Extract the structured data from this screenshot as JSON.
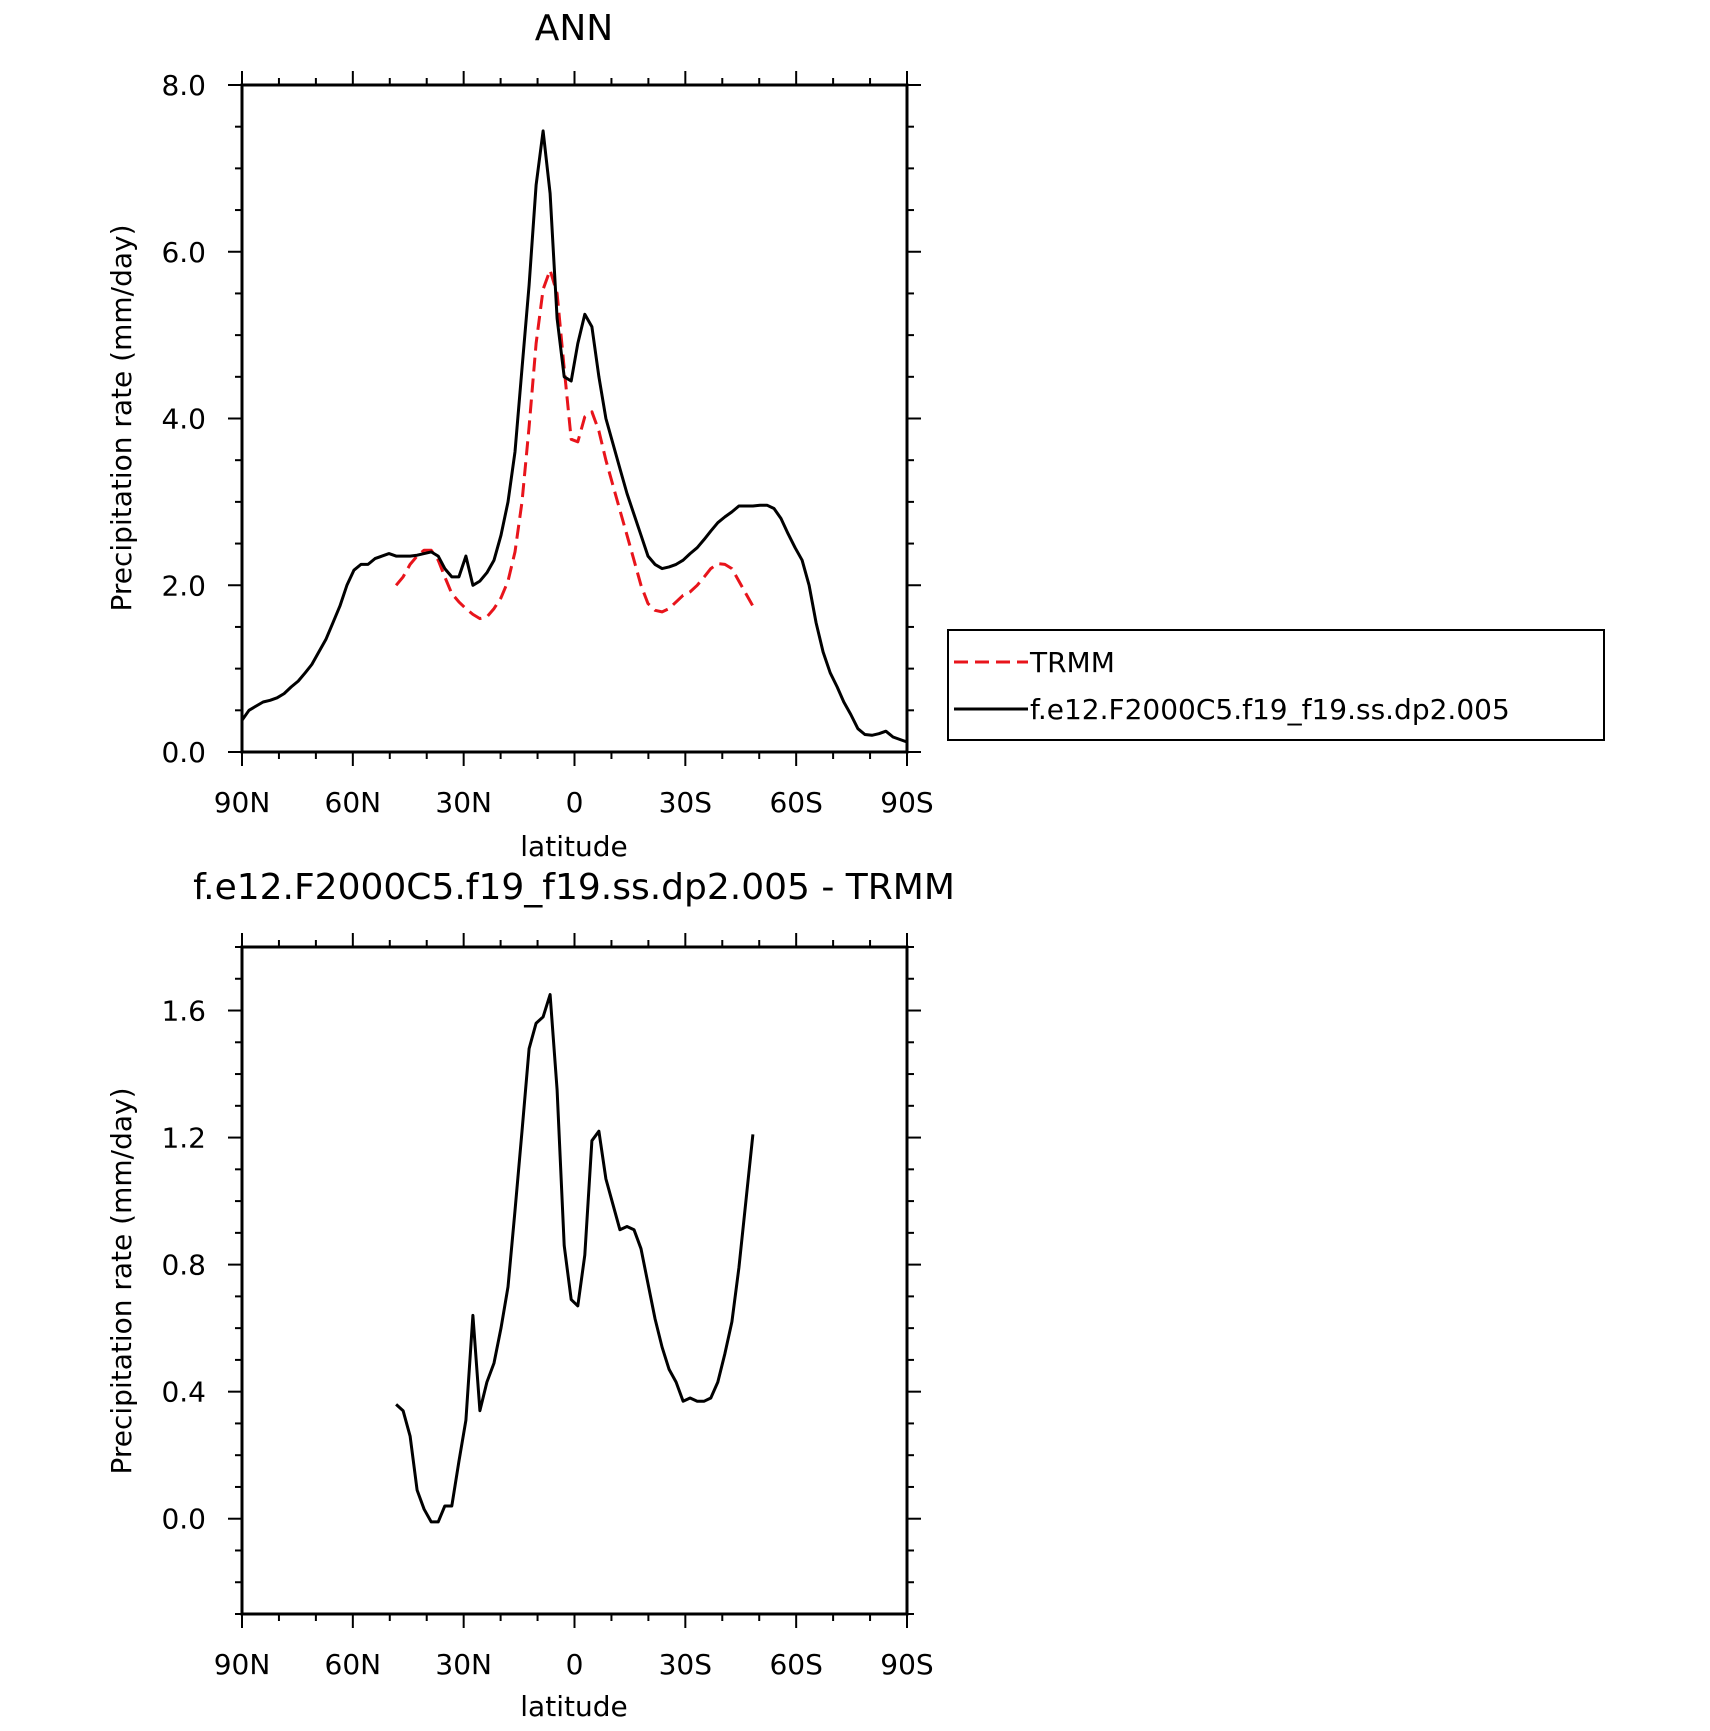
{
  "chart_data": [
    {
      "type": "line",
      "title": "ANN",
      "xlabel": "latitude",
      "ylabel": "Precipitation rate (mm/day)",
      "x_ticks": [
        "90N",
        "60N",
        "30N",
        "0",
        "30S",
        "60S",
        "90S"
      ],
      "y_ticks": [
        "0.0",
        "2.0",
        "4.0",
        "6.0",
        "8.0"
      ],
      "xlim": [
        -90,
        90
      ],
      "ylim": [
        0,
        8
      ],
      "legend_position": "outside-right",
      "series": [
        {
          "name": "TRMM",
          "color": "#e8141b",
          "dash": "dashed",
          "x": [
            -48.3,
            -46.4,
            -44.5,
            -42.6,
            -40.7,
            -38.8,
            -36.9,
            -35.1,
            -33.2,
            -31.3,
            -29.4,
            -27.5,
            -25.6,
            -23.7,
            -21.8,
            -19.9,
            -18.0,
            -16.1,
            -14.2,
            -12.3,
            -10.4,
            -8.5,
            -6.6,
            -4.7,
            -2.8,
            -0.9,
            0.9,
            2.8,
            4.7,
            6.6,
            8.5,
            10.4,
            12.3,
            14.2,
            16.1,
            18.0,
            19.9,
            21.8,
            23.7,
            25.6,
            27.5,
            29.4,
            31.3,
            33.2,
            35.1,
            36.9,
            38.8,
            40.7,
            42.6,
            44.5,
            46.4,
            48.3
          ],
          "y": [
            2.0,
            2.1,
            2.25,
            2.35,
            2.42,
            2.42,
            2.3,
            2.1,
            1.9,
            1.8,
            1.72,
            1.65,
            1.6,
            1.62,
            1.72,
            1.85,
            2.05,
            2.4,
            3.0,
            3.9,
            4.9,
            5.55,
            5.78,
            5.5,
            4.6,
            3.75,
            3.72,
            4.02,
            4.08,
            3.85,
            3.5,
            3.2,
            2.9,
            2.6,
            2.3,
            2.0,
            1.78,
            1.7,
            1.68,
            1.72,
            1.8,
            1.88,
            1.92,
            2.0,
            2.1,
            2.2,
            2.26,
            2.25,
            2.2,
            2.05,
            1.9,
            1.75
          ]
        },
        {
          "name": "f.e12.F2000C5.f19_f19.ss.dp2.005",
          "color": "#000000",
          "dash": "solid",
          "x": [
            -90,
            -88.1,
            -86.2,
            -84.3,
            -82.4,
            -80.5,
            -78.6,
            -76.7,
            -74.8,
            -72.9,
            -71.1,
            -69.2,
            -67.3,
            -65.4,
            -63.5,
            -61.6,
            -59.7,
            -57.8,
            -55.9,
            -54.0,
            -52.1,
            -50.2,
            -48.3,
            -46.4,
            -44.5,
            -42.6,
            -40.7,
            -38.8,
            -36.9,
            -35.1,
            -33.2,
            -31.3,
            -29.4,
            -27.5,
            -25.6,
            -23.7,
            -21.8,
            -19.9,
            -18.0,
            -16.1,
            -14.2,
            -12.3,
            -10.4,
            -8.5,
            -6.6,
            -4.7,
            -2.8,
            -0.9,
            0.9,
            2.8,
            4.7,
            6.6,
            8.5,
            10.4,
            12.3,
            14.2,
            16.1,
            18.0,
            19.9,
            21.8,
            23.7,
            25.6,
            27.5,
            29.4,
            31.3,
            33.2,
            35.1,
            36.9,
            38.8,
            40.7,
            42.6,
            44.5,
            46.4,
            48.3,
            50.2,
            52.1,
            54.0,
            55.9,
            57.8,
            59.7,
            61.6,
            63.5,
            65.4,
            67.3,
            69.2,
            71.1,
            72.9,
            74.8,
            76.7,
            78.6,
            80.5,
            82.4,
            84.3,
            86.2,
            88.1,
            90
          ],
          "y": [
            0.38,
            0.5,
            0.55,
            0.6,
            0.62,
            0.65,
            0.7,
            0.78,
            0.85,
            0.95,
            1.05,
            1.2,
            1.35,
            1.55,
            1.75,
            2.0,
            2.18,
            2.25,
            2.25,
            2.32,
            2.35,
            2.38,
            2.35,
            2.35,
            2.35,
            2.36,
            2.38,
            2.4,
            2.35,
            2.2,
            2.1,
            2.1,
            2.35,
            2.0,
            2.05,
            2.15,
            2.3,
            2.6,
            3.0,
            3.6,
            4.6,
            5.6,
            6.8,
            7.45,
            6.7,
            5.2,
            4.5,
            4.45,
            4.9,
            5.25,
            5.1,
            4.5,
            4.0,
            3.7,
            3.4,
            3.1,
            2.85,
            2.6,
            2.35,
            2.25,
            2.2,
            2.22,
            2.25,
            2.3,
            2.38,
            2.45,
            2.55,
            2.65,
            2.75,
            2.82,
            2.88,
            2.95,
            2.95,
            2.95,
            2.96,
            2.96,
            2.92,
            2.8,
            2.62,
            2.45,
            2.3,
            2.0,
            1.55,
            1.2,
            0.95,
            0.78,
            0.6,
            0.45,
            0.28,
            0.21,
            0.2,
            0.22,
            0.25,
            0.18,
            0.15,
            0.12
          ]
        }
      ]
    },
    {
      "type": "line",
      "title": "f.e12.F2000C5.f19_f19.ss.dp2.005 - TRMM",
      "xlabel": "latitude",
      "ylabel": "Precipitation rate (mm/day)",
      "x_ticks": [
        "90N",
        "60N",
        "30N",
        "0",
        "30S",
        "60S",
        "90S"
      ],
      "y_ticks": [
        "0.0",
        "0.4",
        "0.8",
        "1.2",
        "1.6"
      ],
      "xlim": [
        -90,
        90
      ],
      "ylim": [
        -0.3,
        1.8
      ],
      "series": [
        {
          "color": "#000000",
          "dash": "solid",
          "x": [
            -48.3,
            -46.4,
            -44.5,
            -42.6,
            -40.7,
            -38.8,
            -36.9,
            -35.1,
            -33.2,
            -31.3,
            -29.4,
            -27.5,
            -25.6,
            -23.7,
            -21.8,
            -19.9,
            -18.0,
            -16.1,
            -14.2,
            -12.3,
            -10.4,
            -8.5,
            -6.6,
            -4.7,
            -2.8,
            -0.9,
            0.9,
            2.8,
            4.7,
            6.6,
            8.5,
            10.4,
            12.3,
            14.2,
            16.1,
            18.0,
            19.9,
            21.8,
            23.7,
            25.6,
            27.5,
            29.4,
            31.3,
            33.2,
            35.1,
            36.9,
            38.8,
            40.7,
            42.6,
            44.5,
            46.4,
            48.3
          ],
          "y": [
            0.36,
            0.34,
            0.26,
            0.09,
            0.03,
            -0.01,
            -0.01,
            0.04,
            0.04,
            0.18,
            0.31,
            0.64,
            0.34,
            0.43,
            0.49,
            0.6,
            0.73,
            0.97,
            1.22,
            1.48,
            1.56,
            1.58,
            1.65,
            1.35,
            0.86,
            0.69,
            0.67,
            0.83,
            1.19,
            1.22,
            1.07,
            0.99,
            0.91,
            0.92,
            0.91,
            0.85,
            0.74,
            0.63,
            0.54,
            0.47,
            0.43,
            0.37,
            0.38,
            0.37,
            0.37,
            0.38,
            0.43,
            0.52,
            0.62,
            0.79,
            1.0,
            1.21
          ]
        }
      ]
    }
  ]
}
